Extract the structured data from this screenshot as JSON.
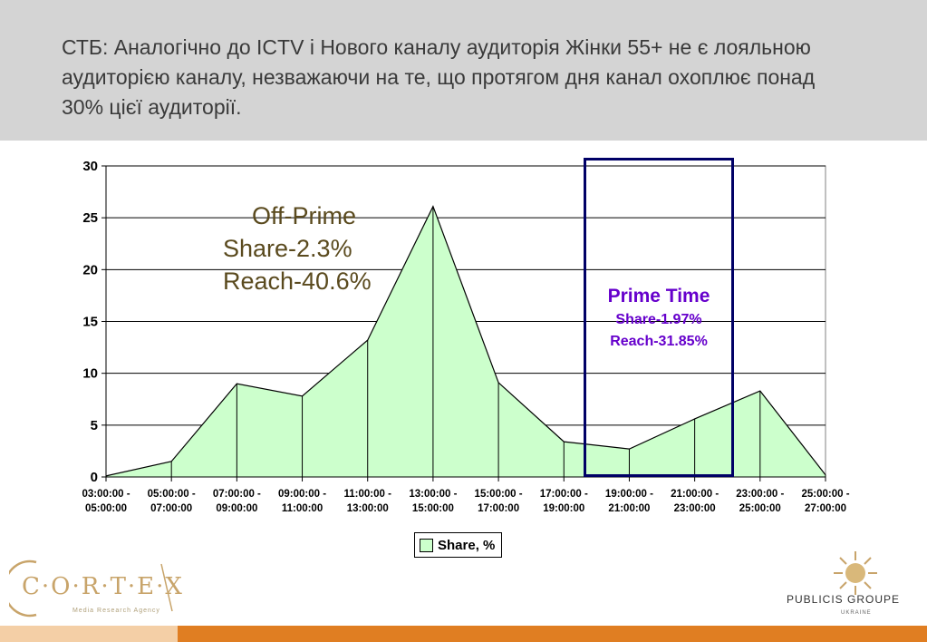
{
  "header": {
    "title": "СТБ: Аналогічно до ICTV і Нового каналу аудиторія Жінки 55+ не є лояльною аудиторією каналу, незважаючи на те, що протягом дня канал охоплює понад 30% цієї аудиторії."
  },
  "chart_data": {
    "type": "area",
    "categories": [
      "03:00:00 - 05:00:00",
      "05:00:00 - 07:00:00",
      "07:00:00 - 09:00:00",
      "09:00:00 - 11:00:00",
      "11:00:00 - 13:00:00",
      "13:00:00 - 15:00:00",
      "15:00:00 - 17:00:00",
      "17:00:00 - 19:00:00",
      "19:00:00 - 21:00:00",
      "21:00:00 - 23:00:00",
      "23:00:00 - 25:00:00",
      "25:00:00 - 27:00:00"
    ],
    "series": [
      {
        "name": "Share, %",
        "values": [
          0.1,
          1.5,
          9.0,
          7.8,
          13.2,
          26.1,
          9.1,
          3.4,
          2.7,
          5.6,
          8.3,
          0.2
        ]
      }
    ],
    "yticks": [
      "0",
      "5",
      "10",
      "15",
      "20",
      "25",
      "30"
    ],
    "ylim": [
      0,
      30
    ],
    "grid": true,
    "legend": "bottom",
    "fill_color": "#ccffcc",
    "line_color": "#000000"
  },
  "annotations": {
    "off_prime": {
      "title": "Off-Prime",
      "share": "Share-2.3%",
      "reach": "Reach-40.6%"
    },
    "prime_time": {
      "title": "Prime Time",
      "share": "Share-1.97%",
      "reach": "Reach-31.85%",
      "range": [
        "17:00:00 - 19:00:00",
        "21:00:00 - 23:00:00"
      ]
    }
  },
  "logos": {
    "cortex": {
      "text": "C·O·R·T·E·X",
      "sub": "Media Research Agency"
    },
    "publicis": {
      "text": "PUBLICIS GROUPE",
      "sub": "UKRAINE"
    }
  }
}
